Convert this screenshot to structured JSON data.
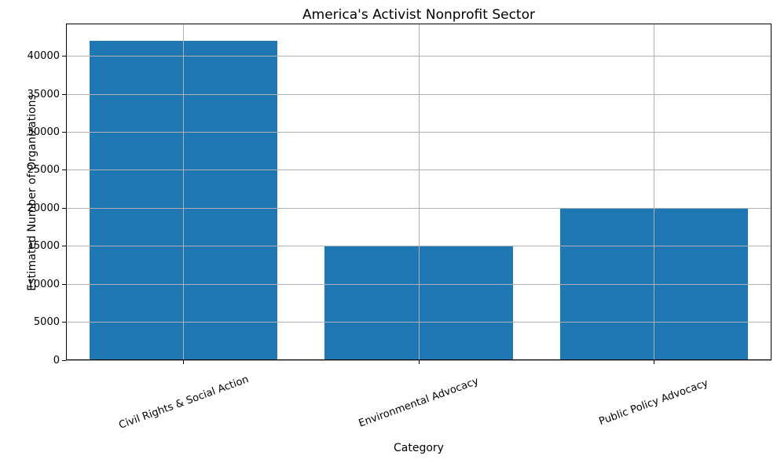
{
  "chart_data": {
    "type": "bar",
    "title": "America's Activist Nonprofit Sector",
    "xlabel": "Category",
    "ylabel": "Estimated Number of Organizations",
    "categories": [
      "Civil Rights & Social Action",
      "Environmental Advocacy",
      "Public Policy Advocacy"
    ],
    "values": [
      42000,
      15000,
      20000
    ],
    "yticks": [
      0,
      5000,
      10000,
      15000,
      20000,
      25000,
      30000,
      35000,
      40000
    ],
    "ylim": [
      0,
      44300
    ],
    "grid": true,
    "grid_on_top_of_bars": true,
    "legend": "none",
    "x_tick_rotation_deg": 20,
    "bar_color": "#1f77b4",
    "grid_color": "#b0b0b0",
    "spine_color": "#000000",
    "background_color": "#ffffff"
  }
}
